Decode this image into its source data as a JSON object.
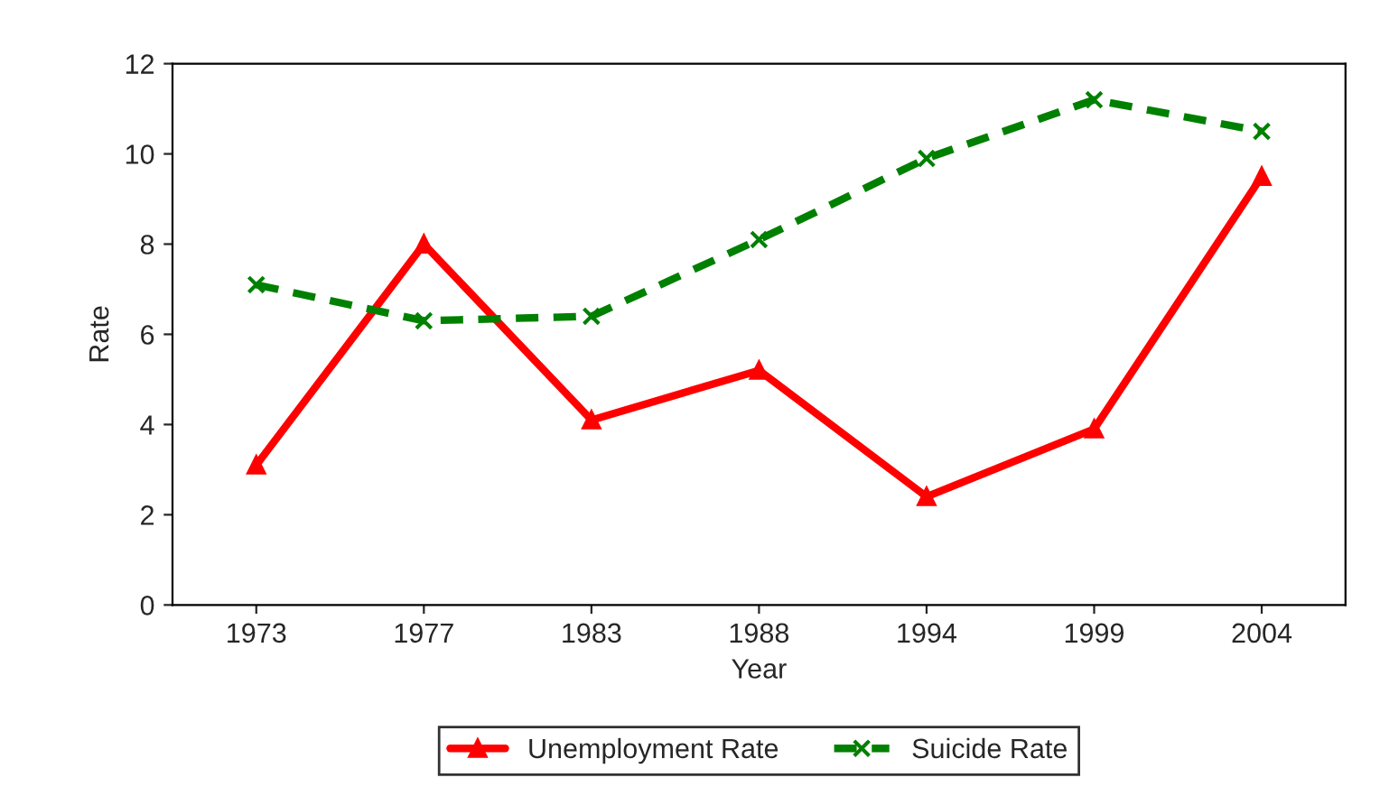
{
  "chart_data": {
    "type": "line",
    "xlabel": "Year",
    "ylabel": "Rate",
    "categories": [
      "1973",
      "1977",
      "1983",
      "1988",
      "1994",
      "1999",
      "2004"
    ],
    "series": [
      {
        "name": "Unemployment Rate",
        "color": "#ff0000",
        "values": [
          3.1,
          8.0,
          4.1,
          5.2,
          2.4,
          3.9,
          9.5
        ],
        "marker": "triangle",
        "line_style": "solid"
      },
      {
        "name": "Suicide Rate",
        "color": "#008000",
        "values": [
          7.1,
          6.3,
          6.4,
          8.1,
          9.9,
          11.2,
          10.5
        ],
        "marker": "cross",
        "line_style": "dashed"
      }
    ],
    "ylim": [
      0,
      12
    ],
    "yticks": [
      0,
      2,
      4,
      6,
      8,
      10,
      12
    ],
    "grid": false,
    "legend": "bottom"
  }
}
